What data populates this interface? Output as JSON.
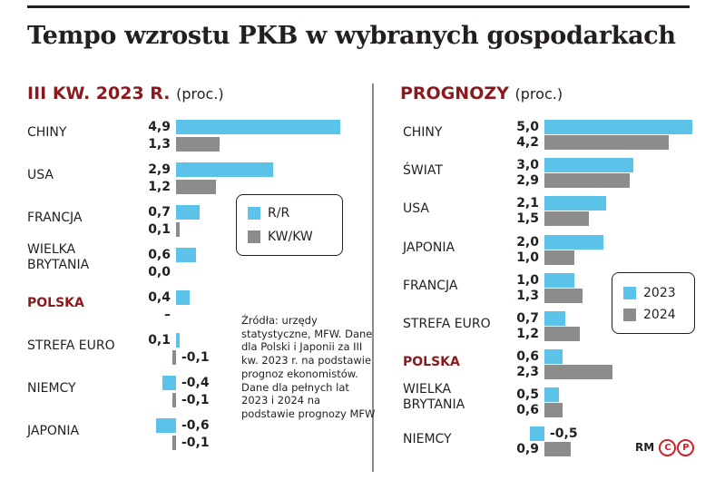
{
  "title": "Tempo wzrostu PKB w wybranych gospodarkach",
  "colors": {
    "series1": "#5bc3ea",
    "series2": "#8c8c8c",
    "highlight": "#8b1a1f"
  },
  "left": {
    "heading": "III KW. 2023 R.",
    "unit": "(proc.)",
    "legend": [
      "R/R",
      "KW/KW"
    ],
    "source": "Źródła: urzędy statystyczne, MFW. Dane dla Polski i Japonii za III kw. 2023 r. na podstawie prognoz ekonomistów. Dane dla pełnych lat 2023 i 2024 na podstawie prognozy MFW"
  },
  "right": {
    "heading": "PROGNOZY",
    "unit": "(proc.)",
    "legend": [
      "2023",
      "2024"
    ],
    "credit": "RM",
    "logo": "CP"
  },
  "chart_data": [
    {
      "type": "bar",
      "orientation": "horizontal",
      "title": "III KW. 2023 R. (proc.)",
      "categories": [
        "CHINY",
        "USA",
        "FRANCJA",
        "WIELKA BRYTANIA",
        "POLSKA",
        "STREFA EURO",
        "NIEMCY",
        "JAPONIA"
      ],
      "highlight": "POLSKA",
      "series": [
        {
          "name": "R/R",
          "values": [
            4.9,
            2.9,
            0.7,
            0.6,
            0.4,
            0.1,
            -0.4,
            -0.6
          ],
          "labels": [
            "4,9",
            "2,9",
            "0,7",
            "0,6",
            "0,4",
            "0,1",
            "-0,4",
            "-0,6"
          ]
        },
        {
          "name": "KW/KW",
          "values": [
            1.3,
            1.2,
            0.1,
            0.0,
            null,
            -0.1,
            -0.1,
            -0.1
          ],
          "labels": [
            "1,3",
            "1,2",
            "0,1",
            "0,0",
            "–",
            "-0,1",
            "-0,1",
            "-0,1"
          ]
        }
      ],
      "legend_position": "right"
    },
    {
      "type": "bar",
      "orientation": "horizontal",
      "title": "PROGNOZY (proc.)",
      "categories": [
        "CHINY",
        "ŚWIAT",
        "USA",
        "JAPONIA",
        "FRANCJA",
        "STREFA EURO",
        "POLSKA",
        "WIELKA BRYTANIA",
        "NIEMCY"
      ],
      "highlight": "POLSKA",
      "series": [
        {
          "name": "2023",
          "values": [
            5.0,
            3.0,
            2.1,
            2.0,
            1.0,
            0.7,
            0.6,
            0.5,
            -0.5
          ],
          "labels": [
            "5,0",
            "3,0",
            "2,1",
            "2,0",
            "1,0",
            "0,7",
            "0,6",
            "0,5",
            "-0,5"
          ]
        },
        {
          "name": "2024",
          "values": [
            4.2,
            2.9,
            1.5,
            1.0,
            1.3,
            1.2,
            2.3,
            0.6,
            0.9
          ],
          "labels": [
            "4,2",
            "2,9",
            "1,5",
            "1,0",
            "1,3",
            "1,2",
            "2,3",
            "0,6",
            "0,9"
          ]
        }
      ],
      "legend_position": "right"
    }
  ]
}
